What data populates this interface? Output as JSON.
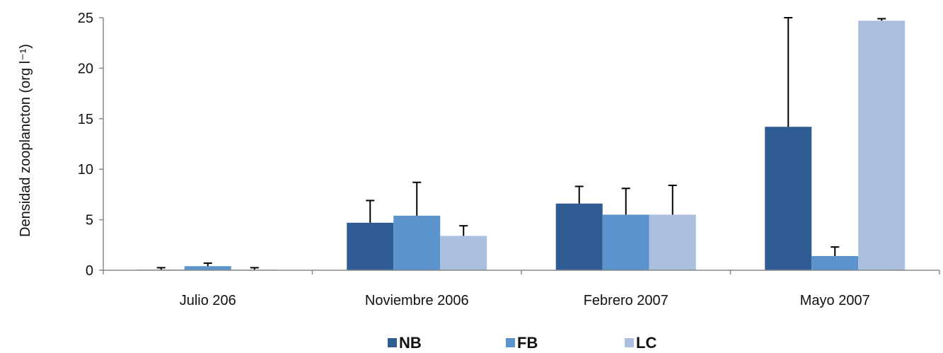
{
  "chart_data": {
    "type": "bar",
    "title": "",
    "xlabel": "",
    "ylabel": "Densidad zooplancton (org l⁻¹)",
    "ylim": [
      0,
      25
    ],
    "yticks": [
      0,
      5,
      10,
      15,
      20,
      25
    ],
    "grid": false,
    "legend_position": "bottom",
    "categories": [
      "Julio 206",
      "Noviembre 2006",
      "Febrero 2007",
      "Mayo 2007"
    ],
    "series": [
      {
        "name": "NB",
        "color": "#2e5c93",
        "values": [
          0.05,
          4.7,
          6.6,
          14.2
        ],
        "error": [
          0.2,
          2.2,
          1.7,
          10.8
        ]
      },
      {
        "name": "FB",
        "color": "#5b93cc",
        "values": [
          0.4,
          5.4,
          5.5,
          1.4
        ],
        "error": [
          0.3,
          3.3,
          2.6,
          0.9
        ]
      },
      {
        "name": "LC",
        "color": "#a9bfdd",
        "values": [
          0.05,
          3.4,
          5.5,
          24.7
        ],
        "error": [
          0.2,
          1.0,
          2.9,
          0.2
        ]
      }
    ]
  }
}
